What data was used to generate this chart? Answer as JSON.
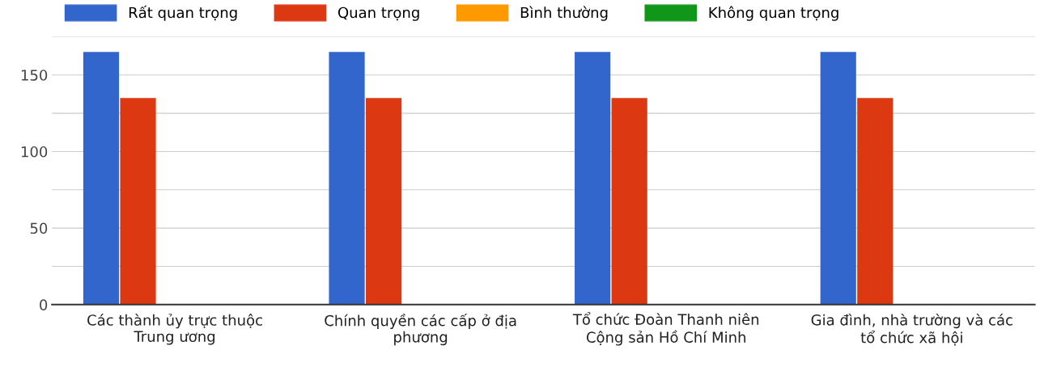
{
  "chart_data": {
    "type": "bar",
    "categories": [
      "Các thành ủy trực thuộc\nTrung ương",
      "Chính quyền các cấp ở địa\nphương",
      "Tổ chức Đoàn Thanh niên\nCộng sản Hồ Chí Minh",
      "Gia đình, nhà trường và các\ntổ chức xã hội"
    ],
    "series": [
      {
        "name": "Rất quan trọng",
        "color": "#3366cc",
        "values": [
          165,
          165,
          165,
          165
        ]
      },
      {
        "name": "Quan trọng",
        "color": "#dc3912",
        "values": [
          135,
          135,
          135,
          135
        ]
      },
      {
        "name": "Bình thường",
        "color": "#ff9900",
        "values": [
          0,
          0,
          0,
          0
        ]
      },
      {
        "name": "Không quan trọng",
        "color": "#109618",
        "values": [
          0,
          0,
          0,
          0
        ]
      }
    ],
    "ylim": [
      0,
      175
    ],
    "yticks": [
      0,
      {
        "value": 25,
        "label": null
      },
      50,
      {
        "value": 75,
        "label": null
      },
      100,
      {
        "value": 125,
        "label": null
      },
      150,
      {
        "value": 175,
        "label": null
      }
    ],
    "grid": "y",
    "legend": "top"
  }
}
